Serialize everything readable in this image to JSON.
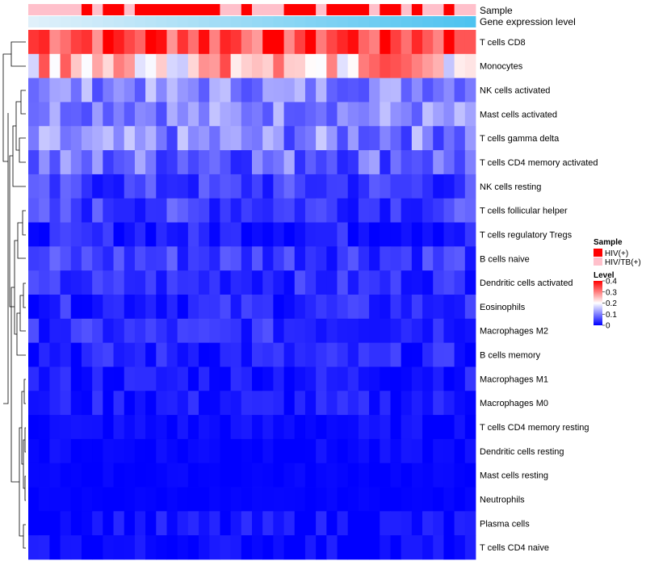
{
  "chart_data": {
    "type": "heatmap",
    "annotation_labels": [
      "Sample",
      "Gene expression level"
    ],
    "legend": {
      "sample_title": "Sample",
      "sample_entries": [
        {
          "label": "HIV(+)",
          "color": "#ff0000"
        },
        {
          "label": "HIV/TB(+)",
          "color": "#ffc0cb"
        }
      ],
      "level_title": "Level",
      "level_ticks": [
        "0.4",
        "0.3",
        "0.2",
        "0.1",
        "0"
      ],
      "level_tick_values": [
        0.4,
        0.3,
        0.2,
        0.1,
        0
      ],
      "color_low": "#0000ff",
      "color_mid": "#ffffff",
      "color_high": "#ff0000",
      "level_range": [
        0,
        0.4
      ]
    },
    "sample_groups": [
      2,
      2,
      2,
      2,
      2,
      1,
      2,
      1,
      1,
      2,
      1,
      1,
      1,
      1,
      1,
      1,
      1,
      1,
      2,
      2,
      1,
      2,
      2,
      2,
      1,
      1,
      1,
      2,
      1,
      1,
      1,
      1,
      2,
      1,
      1,
      2,
      1,
      2,
      2,
      1,
      2,
      2
    ],
    "expression_level_range": [
      0,
      1
    ],
    "row_labels": [
      "T cells CD8",
      "Monocytes",
      "NK cells activated",
      "Mast cells activated",
      "T cells gamma delta",
      "T cells CD4 memory activated",
      "NK cells resting",
      "T cells follicular helper",
      "T cells regulatory  Tregs",
      "B cells naive",
      "Dendritic cells activated",
      "Eosinophils",
      "Macrophages M2",
      "B cells memory",
      "Macrophages M1",
      "Macrophages M0",
      "T cells CD4 memory resting",
      "Dendritic cells resting",
      "Mast cells resting",
      "Neutrophils",
      "Plasma cells",
      "T cells CD4 naive"
    ],
    "row_means": [
      0.36,
      0.25,
      0.11,
      0.11,
      0.1,
      0.085,
      0.045,
      0.05,
      0.025,
      0.05,
      0.035,
      0.03,
      0.035,
      0.025,
      0.02,
      0.02,
      0.008,
      0.006,
      0.003,
      0.002,
      0.012,
      0.008
    ],
    "row_spread": [
      0.09,
      0.1,
      0.05,
      0.05,
      0.06,
      0.06,
      0.04,
      0.04,
      0.03,
      0.04,
      0.03,
      0.03,
      0.03,
      0.03,
      0.025,
      0.025,
      0.015,
      0.012,
      0.006,
      0.004,
      0.025,
      0.02
    ],
    "n_samples": 42
  }
}
